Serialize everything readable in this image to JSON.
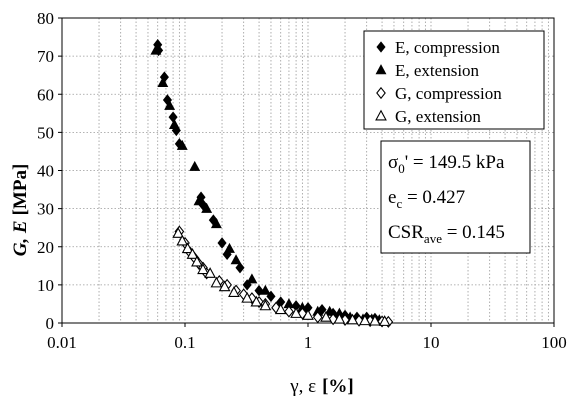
{
  "chart_data": {
    "type": "scatter",
    "x_scale": "log",
    "xlim": [
      0.01,
      100
    ],
    "ylim": [
      0,
      80
    ],
    "xticks": [
      "0.01",
      "0.1",
      "1",
      "10",
      "100"
    ],
    "yticks": [
      "0",
      "10",
      "20",
      "30",
      "40",
      "50",
      "60",
      "70",
      "80"
    ],
    "xlabel": {
      "greek": "γ, ε",
      "unit": "[%]"
    },
    "ylabel": {
      "vars": "G, E",
      "unit": "[MPa]"
    },
    "grid": true,
    "legend_position": "top-right",
    "annotation": {
      "line1": {
        "sym": "σ",
        "sub": "0",
        "rest": "' = 149.5 kPa"
      },
      "line2": {
        "sym": "e",
        "sub": "c",
        "rest": " = 0.427"
      },
      "line3": {
        "sym": "CSR",
        "sub": "ave",
        "rest": " = 0.145"
      }
    },
    "series": [
      {
        "name": "E, compression",
        "marker": "diamond-filled",
        "points": [
          [
            0.06,
            73
          ],
          [
            0.061,
            71.5
          ],
          [
            0.068,
            64.5
          ],
          [
            0.072,
            58.5
          ],
          [
            0.08,
            54
          ],
          [
            0.085,
            50.5
          ],
          [
            0.09,
            47
          ],
          [
            0.135,
            33
          ],
          [
            0.14,
            31
          ],
          [
            0.17,
            27
          ],
          [
            0.2,
            21
          ],
          [
            0.22,
            18
          ],
          [
            0.28,
            14.5
          ],
          [
            0.32,
            10
          ],
          [
            0.4,
            8.5
          ],
          [
            0.5,
            7
          ],
          [
            0.6,
            5.5
          ],
          [
            0.8,
            4.5
          ],
          [
            1.0,
            4
          ],
          [
            1.3,
            3.5
          ],
          [
            1.6,
            2.5
          ],
          [
            2.0,
            2
          ],
          [
            2.5,
            1.5
          ],
          [
            3.0,
            1.5
          ],
          [
            3.5,
            1.2
          ]
        ]
      },
      {
        "name": "E, extension",
        "marker": "triangle-filled",
        "points": [
          [
            0.058,
            71.5
          ],
          [
            0.066,
            63
          ],
          [
            0.075,
            57
          ],
          [
            0.082,
            52
          ],
          [
            0.095,
            46.5
          ],
          [
            0.12,
            41
          ],
          [
            0.13,
            32
          ],
          [
            0.15,
            30
          ],
          [
            0.18,
            26
          ],
          [
            0.23,
            19.5
          ],
          [
            0.26,
            16.5
          ],
          [
            0.35,
            11.5
          ],
          [
            0.45,
            8.5
          ],
          [
            0.7,
            5
          ],
          [
            0.9,
            4
          ],
          [
            1.2,
            3
          ],
          [
            1.5,
            3
          ],
          [
            1.8,
            2.5
          ],
          [
            2.2,
            1.5
          ],
          [
            2.8,
            1
          ],
          [
            3.3,
            1
          ],
          [
            3.8,
            0.8
          ]
        ]
      },
      {
        "name": "G, compression",
        "marker": "diamond-open",
        "points": [
          [
            0.09,
            24
          ],
          [
            0.1,
            21
          ],
          [
            0.11,
            18.5
          ],
          [
            0.12,
            17
          ],
          [
            0.13,
            15.5
          ],
          [
            0.14,
            14.5
          ],
          [
            0.15,
            13
          ],
          [
            0.19,
            11
          ],
          [
            0.22,
            10
          ],
          [
            0.26,
            8.5
          ],
          [
            0.3,
            7.5
          ],
          [
            0.35,
            6.5
          ],
          [
            0.4,
            5.5
          ],
          [
            0.45,
            5
          ],
          [
            0.55,
            4
          ],
          [
            0.7,
            3
          ],
          [
            0.9,
            2.5
          ],
          [
            1.2,
            1.5
          ],
          [
            1.6,
            1
          ],
          [
            2.0,
            0.8
          ],
          [
            2.6,
            0.6
          ],
          [
            3.2,
            0.5
          ],
          [
            4.0,
            0.4
          ],
          [
            4.5,
            0.3
          ]
        ]
      },
      {
        "name": "G, extension",
        "marker": "triangle-open",
        "points": [
          [
            0.088,
            23.5
          ],
          [
            0.095,
            21.5
          ],
          [
            0.105,
            19.5
          ],
          [
            0.115,
            18
          ],
          [
            0.125,
            16
          ],
          [
            0.14,
            14
          ],
          [
            0.16,
            13
          ],
          [
            0.18,
            10.5
          ],
          [
            0.21,
            9.5
          ],
          [
            0.25,
            8
          ],
          [
            0.32,
            6.5
          ],
          [
            0.38,
            5.5
          ],
          [
            0.45,
            4.5
          ],
          [
            0.6,
            3.5
          ],
          [
            0.8,
            2.5
          ],
          [
            1.0,
            2
          ],
          [
            1.4,
            1.5
          ],
          [
            1.8,
            1
          ],
          [
            2.3,
            0.8
          ],
          [
            2.9,
            0.6
          ],
          [
            3.5,
            0.5
          ],
          [
            4.2,
            0.4
          ]
        ]
      }
    ]
  }
}
